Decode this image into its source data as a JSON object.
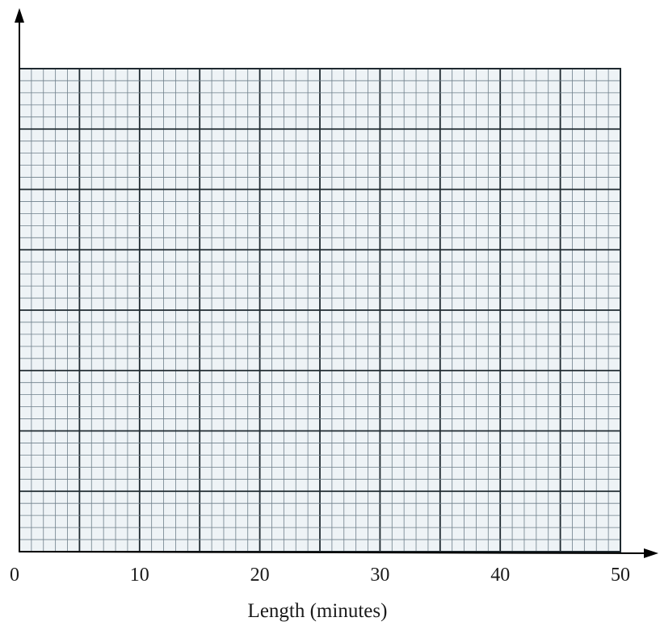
{
  "chart_data": {
    "type": "line",
    "title": "",
    "xlabel": "Length (minutes)",
    "ylabel": "",
    "xlim": [
      0,
      50
    ],
    "x_ticks": [
      "0",
      "10",
      "20",
      "30",
      "40",
      "50"
    ],
    "x_tick_values": [
      0,
      10,
      20,
      30,
      40,
      50
    ],
    "grid": true,
    "series": []
  },
  "colors": {
    "grid_fine": "#6e7f8a",
    "grid_bold": "#1f2a30",
    "paper": "#eef3f6",
    "axis": "#000000"
  }
}
